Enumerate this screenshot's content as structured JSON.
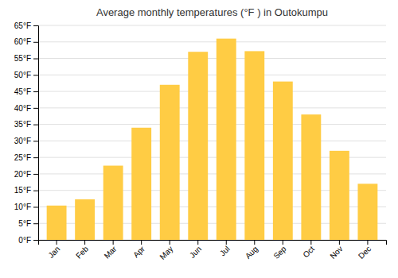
{
  "chart_data": {
    "type": "bar",
    "title": "Average monthly temperatures (°F ) in Outokumpu",
    "categories": [
      "Jan",
      "Feb",
      "Mar",
      "Apr",
      "May",
      "Jun",
      "Jul",
      "Aug",
      "Sep",
      "Oct",
      "Nov",
      "Dec"
    ],
    "values": [
      10.4,
      12.3,
      22.5,
      34.0,
      47.0,
      57.0,
      61.0,
      57.2,
      48.0,
      38.0,
      27.0,
      17.0
    ],
    "color": "#FFCC44",
    "ylim": [
      0,
      65
    ],
    "yticks": [
      {
        "value": 0,
        "label": "0°F"
      },
      {
        "value": 5,
        "label": "5°F"
      },
      {
        "value": 10,
        "label": "10°F"
      },
      {
        "value": 15,
        "label": "15°F"
      },
      {
        "value": 20,
        "label": "20°F"
      },
      {
        "value": 25,
        "label": "25°F"
      },
      {
        "value": 30,
        "label": "30°F"
      },
      {
        "value": 35,
        "label": "35°F"
      },
      {
        "value": 40,
        "label": "40°F"
      },
      {
        "value": 45,
        "label": "45°F"
      },
      {
        "value": 50,
        "label": "50°F"
      },
      {
        "value": 55,
        "label": "55°F"
      },
      {
        "value": 60,
        "label": "60°F"
      },
      {
        "value": 65,
        "label": "65°F"
      }
    ],
    "grid": true
  }
}
